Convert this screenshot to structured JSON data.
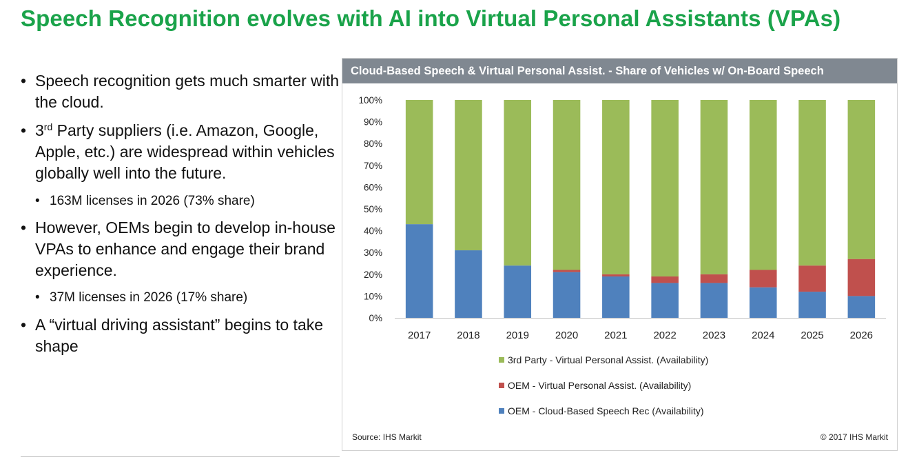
{
  "slide": {
    "title": "Speech Recognition evolves with AI into Virtual Personal Assistants (VPAs)"
  },
  "bullets": {
    "b1": "Speech recognition gets much smarter with the cloud.",
    "b2_pre": "3",
    "b2_sup": "rd",
    "b2_post": " Party suppliers (i.e. Amazon, Google, Apple, etc.) are widespread within vehicles globally well into the future.",
    "b2_sub": "163M licenses in 2026 (73% share)",
    "b3": "However, OEMs begin to develop in-house VPAs to enhance and engage their brand experience.",
    "b3_sub": "37M licenses in 2026 (17% share)",
    "b4": "A “virtual driving assistant” begins to take shape",
    "bullet_char": "•"
  },
  "chart_data": {
    "type": "bar",
    "stacked": true,
    "title": "Cloud-Based Speech & Virtual Personal Assist. - Share of Vehicles w/ On-Board Speech",
    "categories": [
      "2017",
      "2018",
      "2019",
      "2020",
      "2021",
      "2022",
      "2023",
      "2024",
      "2025",
      "2026"
    ],
    "series": [
      {
        "name": "OEM - Cloud-Based Speech Rec (Availability)",
        "color": "#4f81bd",
        "values": [
          43,
          31,
          24,
          21,
          19,
          16,
          16,
          14,
          12,
          10
        ]
      },
      {
        "name": "OEM - Virtual Personal Assist. (Availability)",
        "color": "#c0504d",
        "values": [
          0,
          0,
          0,
          1,
          1,
          3,
          4,
          8,
          12,
          17
        ]
      },
      {
        "name": "3rd Party - Virtual Personal Assist. (Availability)",
        "color": "#9bbb59",
        "values": [
          57,
          69,
          76,
          78,
          80,
          81,
          80,
          78,
          76,
          73
        ]
      }
    ],
    "yticks": [
      "0%",
      "10%",
      "20%",
      "30%",
      "40%",
      "50%",
      "60%",
      "70%",
      "80%",
      "90%",
      "100%"
    ],
    "ylim": [
      0,
      100
    ],
    "grid": false,
    "legend_position": "bottom",
    "legend_order": [
      "3rd Party - Virtual Personal Assist. (Availability)",
      "OEM - Virtual Personal Assist. (Availability)",
      "OEM - Cloud-Based Speech Rec (Availability)"
    ],
    "source": "Source: IHS Markit",
    "copyright": "© 2017 IHS Markit"
  }
}
